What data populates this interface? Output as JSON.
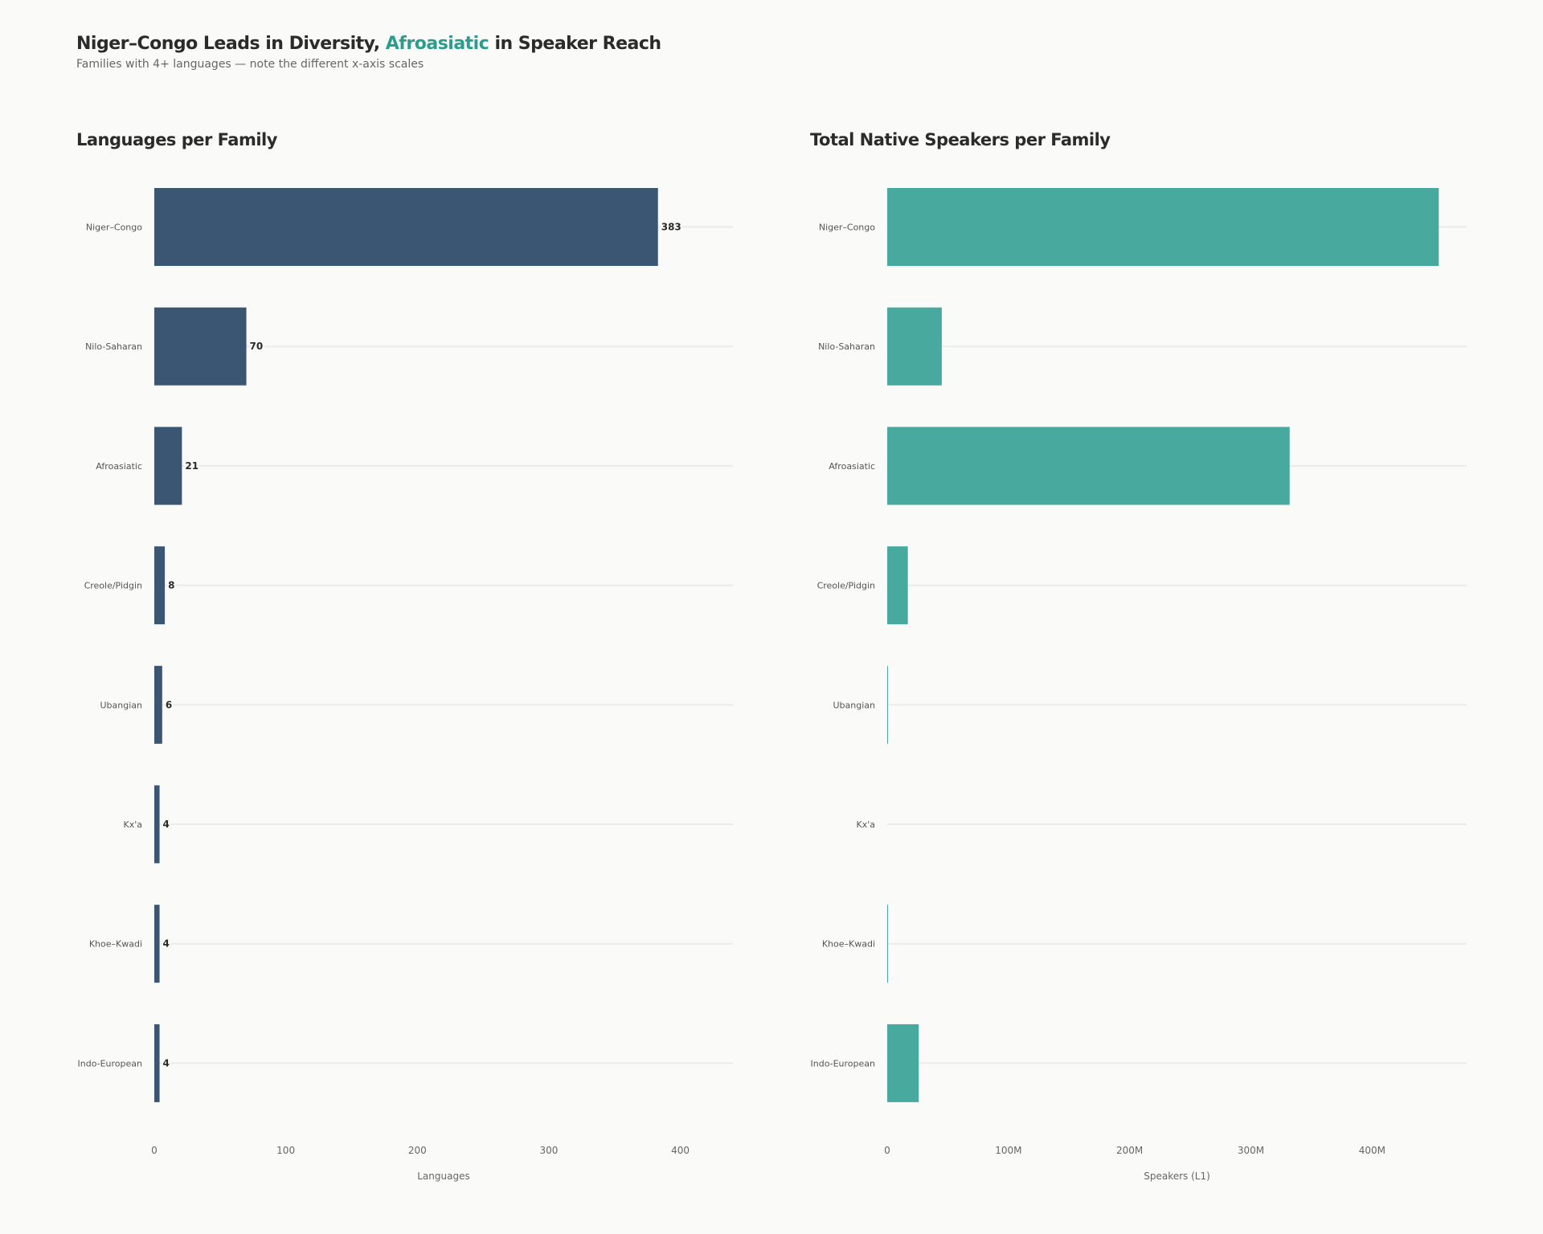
{
  "title": {
    "part1": "Niger–Congo Leads in Diversity, ",
    "highlight": "Afroasiatic",
    "part2": " in Speaker Reach"
  },
  "subtitle": "Families with 4+ languages — note the different x-axis scales",
  "colors": {
    "languages_bar": "#3a5673",
    "speakers_bar": "#48aa9e",
    "highlight": "#2a9d8f",
    "gridline": "#ebebe8"
  },
  "chart_data": [
    {
      "type": "bar",
      "orientation": "horizontal",
      "title": "Languages per Family",
      "xlabel": "Languages",
      "categories": [
        "Niger–Congo",
        "Nilo-Saharan",
        "Afroasiatic",
        "Creole/Pidgin",
        "Ubangian",
        "Kx'a",
        "Khoe–Kwadi",
        "Indo-European"
      ],
      "values": [
        383,
        70,
        21,
        8,
        6,
        4,
        4,
        4
      ],
      "data_labels": [
        "383",
        "70",
        "21",
        "8",
        "6",
        "4",
        "4",
        "4"
      ],
      "xlim": [
        0,
        440
      ],
      "xticks": [
        0,
        100,
        200,
        300,
        400
      ],
      "xtick_labels": [
        "0",
        "100",
        "200",
        "300",
        "400"
      ],
      "grid": "horizontal row lines"
    },
    {
      "type": "bar",
      "orientation": "horizontal",
      "title": "Total Native Speakers per Family",
      "xlabel": "Speakers (L1)",
      "categories": [
        "Niger–Congo",
        "Nilo-Saharan",
        "Afroasiatic",
        "Creole/Pidgin",
        "Ubangian",
        "Kx'a",
        "Khoe–Kwadi",
        "Indo-European"
      ],
      "values": [
        455000000,
        45000000,
        332000000,
        17000000,
        500000,
        0,
        200000,
        26000000
      ],
      "xlim": [
        0,
        478000000
      ],
      "xticks": [
        0,
        100000000,
        200000000,
        300000000,
        400000000
      ],
      "xtick_labels": [
        "0",
        "100M",
        "200M",
        "300M",
        "400M"
      ],
      "grid": "horizontal row lines"
    }
  ]
}
